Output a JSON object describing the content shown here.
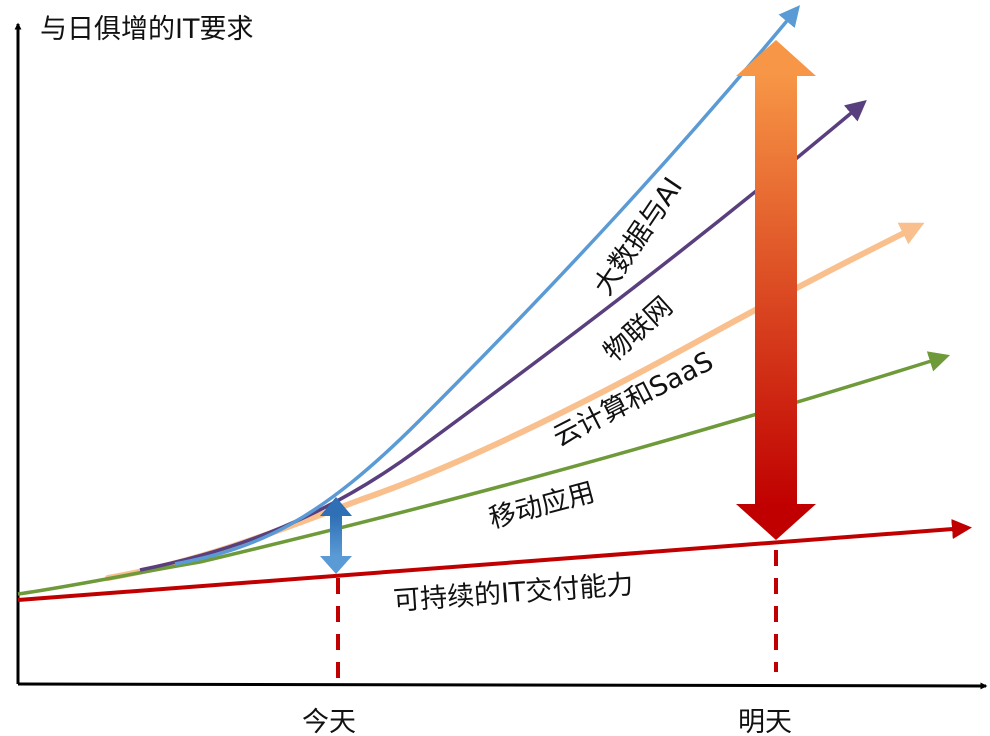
{
  "y_axis_label": "与日俱增的IT要求",
  "x_ticks": {
    "today": "今天",
    "tomorrow": "明天"
  },
  "curves": {
    "bigdata_ai": {
      "label": "大数据与AI",
      "color": "#5B9BD5"
    },
    "iot": {
      "label": "物联网",
      "color": "#5A3F7F"
    },
    "cloud_saas": {
      "label": "云计算和SaaS",
      "color": "#F9C08E"
    },
    "mobile": {
      "label": "移动应用",
      "color": "#6E9A3A"
    },
    "it_capability": {
      "label": "可持续的IT交付能力",
      "color": "#C00000"
    }
  },
  "gap_arrow_today_color": "#3E7CC4",
  "gap_arrow_tomorrow_colors": [
    "#F79646",
    "#C00000"
  ],
  "dashed_marker_color": "#C00000"
}
